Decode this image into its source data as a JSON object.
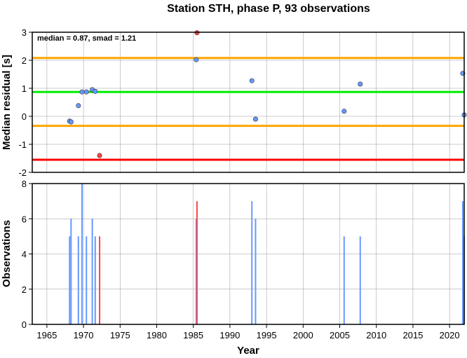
{
  "chart_data": [
    {
      "type": "scatter",
      "title": "Station STH, phase P, 93 observations",
      "xlabel": "",
      "ylabel": "Median residual [s]",
      "xlim": [
        1963,
        2022
      ],
      "ylim": [
        -2,
        3
      ],
      "yticks": [
        -2,
        -1,
        0,
        1,
        2,
        3
      ],
      "grid": true,
      "annotation": "median = 0.87, smad = 1.21",
      "reference_lines": [
        {
          "value": 2.08,
          "color": "#ffa500"
        },
        {
          "value": 0.87,
          "color": "#00ee00"
        },
        {
          "value": -0.34,
          "color": "#ffa500"
        },
        {
          "value": -1.55,
          "color": "#ff0000"
        }
      ],
      "series": [
        {
          "color": "#6699ff",
          "points": [
            [
              1968.1,
              -0.17
            ],
            [
              1968.3,
              -0.2
            ],
            [
              1969.3,
              0.38
            ],
            [
              1969.8,
              0.87
            ],
            [
              1970.4,
              0.87
            ],
            [
              1971.2,
              0.95
            ],
            [
              1971.6,
              0.89
            ],
            [
              1985.4,
              2.02
            ],
            [
              1993.0,
              1.27
            ],
            [
              1993.5,
              -0.1
            ],
            [
              2005.6,
              0.18
            ],
            [
              2007.8,
              1.15
            ],
            [
              2021.8,
              1.53
            ],
            [
              2022.0,
              0.05
            ]
          ]
        },
        {
          "color": "#ff4444",
          "points": [
            [
              1972.2,
              -1.4
            ],
            [
              1985.5,
              2.98
            ]
          ]
        }
      ]
    },
    {
      "type": "bar",
      "xlabel": "Year",
      "ylabel": "Observations",
      "xlim": [
        1963,
        2022
      ],
      "ylim": [
        0,
        8
      ],
      "yticks": [
        0,
        2,
        4,
        6,
        8
      ],
      "xticks": [
        1965,
        1970,
        1975,
        1980,
        1985,
        1990,
        1995,
        2000,
        2005,
        2010,
        2015,
        2020
      ],
      "grid": true,
      "series": [
        {
          "color": "#6699ff",
          "bars": [
            [
              1968.1,
              5
            ],
            [
              1968.3,
              6
            ],
            [
              1969.3,
              5
            ],
            [
              1969.8,
              8
            ],
            [
              1970.4,
              5
            ],
            [
              1971.2,
              6
            ],
            [
              1971.6,
              5
            ],
            [
              1985.4,
              6
            ],
            [
              1993.0,
              7
            ],
            [
              1993.5,
              6
            ],
            [
              2005.6,
              5
            ],
            [
              2007.8,
              5
            ],
            [
              2021.8,
              7
            ],
            [
              2022.0,
              5
            ]
          ]
        },
        {
          "color": "#ff4444",
          "bars": [
            [
              1972.2,
              5
            ],
            [
              1985.5,
              7
            ]
          ]
        }
      ]
    }
  ]
}
